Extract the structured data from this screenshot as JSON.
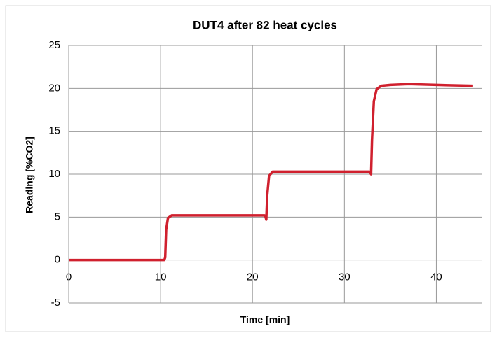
{
  "chart_data": {
    "type": "line",
    "title": "DUT4 after 82 heat cycles",
    "x_label": "Time [min]",
    "y_label": "Reading [%CO2]",
    "x": [
      0,
      10.4,
      10.5,
      10.6,
      10.8,
      11.2,
      12,
      21.3,
      21.4,
      21.5,
      21.6,
      21.8,
      22.2,
      23,
      32.7,
      32.8,
      32.9,
      33.0,
      33.2,
      33.5,
      34,
      35,
      37,
      40,
      44
    ],
    "series": [
      {
        "color": "#d0202e",
        "values": [
          0,
          0,
          0.3,
          3.5,
          4.9,
          5.2,
          5.2,
          5.2,
          5.1,
          4.7,
          7.5,
          9.8,
          10.3,
          10.3,
          10.3,
          10.2,
          10.0,
          14,
          18.5,
          19.9,
          20.3,
          20.4,
          20.5,
          20.4,
          20.3
        ]
      }
    ],
    "xlim": [
      0,
      45
    ],
    "xticks": [
      0,
      10,
      20,
      30,
      40
    ],
    "ylim": [
      -5,
      25
    ],
    "yticks": [
      -5,
      0,
      5,
      10,
      15,
      20,
      25
    ],
    "grid": true
  }
}
